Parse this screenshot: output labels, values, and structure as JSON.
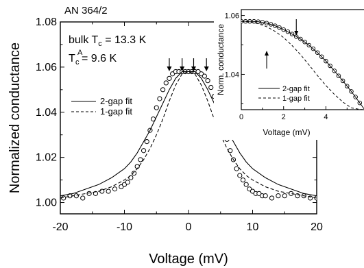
{
  "chart_data": [
    {
      "type": "scatter",
      "sample_label": "AN 364/2",
      "annotation_bulk": {
        "pre": "bulk T",
        "sub": "c",
        "post": " = 13.3 K"
      },
      "annotation_tca": {
        "pre": "T",
        "sub": "c",
        "sup": "A",
        "post": " = 9.6 K"
      },
      "xlabel": "Voltage (mV)",
      "ylabel": "Normalized conductance",
      "xlim": [
        -20,
        20
      ],
      "ylim": [
        0.995,
        1.08
      ],
      "xticks": [
        -20,
        -10,
        0,
        10,
        20
      ],
      "yticks": [
        1.0,
        1.02,
        1.04,
        1.06,
        1.08
      ],
      "ytick_labels": [
        "1.00",
        "1.02",
        "1.04",
        "1.06",
        "1.08"
      ],
      "legend": {
        "placement": "middle-left",
        "entries": [
          "2-gap fit",
          "1-gap fit"
        ]
      },
      "arrows_x": [
        -3.0,
        -1.0,
        0.8,
        2.8
      ],
      "series": [
        {
          "name": "data",
          "style": "open-circles",
          "x": [
            -19.5,
            -18.5,
            -17.5,
            -16.5,
            -15.5,
            -14.5,
            -13.5,
            -12.5,
            -11.5,
            -10.5,
            -10.0,
            -9.5,
            -9.0,
            -8.5,
            -8.0,
            -7.5,
            -7.0,
            -6.5,
            -6.0,
            -5.5,
            -5.0,
            -4.5,
            -4.0,
            -3.5,
            -3.0,
            -2.5,
            -2.0,
            -1.5,
            -1.0,
            -0.5,
            0.0,
            0.5,
            1.0,
            1.5,
            2.0,
            2.5,
            3.0,
            3.5,
            4.0,
            4.5,
            5.0,
            5.5,
            6.0,
            6.5,
            7.0,
            7.5,
            8.0,
            8.5,
            9.0,
            9.5,
            10.0,
            10.5,
            11.0,
            11.5,
            12.0,
            13.0,
            14.0,
            15.0,
            16.0,
            17.0,
            18.0,
            19.0,
            20.0
          ],
          "values": [
            1.002,
            1.003,
            1.003,
            1.002,
            1.004,
            1.004,
            1.005,
            1.005,
            1.006,
            1.007,
            1.008,
            1.009,
            1.011,
            1.013,
            1.016,
            1.019,
            1.023,
            1.027,
            1.032,
            1.037,
            1.042,
            1.046,
            1.05,
            1.053,
            1.055,
            1.057,
            1.058,
            1.058,
            1.058,
            1.058,
            1.058,
            1.058,
            1.058,
            1.058,
            1.057,
            1.056,
            1.054,
            1.051,
            1.047,
            1.043,
            1.038,
            1.033,
            1.028,
            1.023,
            1.019,
            1.015,
            1.012,
            1.01,
            1.008,
            1.006,
            1.005,
            1.004,
            1.004,
            1.003,
            1.003,
            1.002,
            1.003,
            1.003,
            1.004,
            1.003,
            1.003,
            1.002,
            1.002
          ]
        },
        {
          "name": "2-gap fit",
          "style": "solid",
          "x": [
            -20,
            -18,
            -16,
            -14,
            -12,
            -10,
            -9,
            -8,
            -7,
            -6,
            -5,
            -4,
            -3,
            -2,
            -1,
            0,
            1,
            2,
            3,
            4,
            5,
            6,
            7,
            8,
            9,
            10,
            12,
            14,
            16,
            18,
            20
          ],
          "values": [
            1.003,
            1.004,
            1.006,
            1.008,
            1.011,
            1.015,
            1.018,
            1.022,
            1.027,
            1.032,
            1.038,
            1.044,
            1.05,
            1.055,
            1.058,
            1.058,
            1.058,
            1.055,
            1.05,
            1.044,
            1.038,
            1.032,
            1.027,
            1.022,
            1.018,
            1.015,
            1.011,
            1.008,
            1.006,
            1.004,
            1.003
          ]
        },
        {
          "name": "1-gap fit",
          "style": "dashed",
          "x": [
            -20,
            -18,
            -16,
            -14,
            -12,
            -10,
            -9,
            -8,
            -7,
            -6,
            -5,
            -4,
            -3,
            -2,
            -1,
            0,
            1,
            2,
            3,
            4,
            5,
            6,
            7,
            8,
            9,
            10,
            12,
            14,
            16,
            18,
            20
          ],
          "values": [
            1.002,
            1.003,
            1.004,
            1.005,
            1.007,
            1.01,
            1.012,
            1.015,
            1.019,
            1.024,
            1.03,
            1.037,
            1.045,
            1.052,
            1.057,
            1.058,
            1.057,
            1.052,
            1.045,
            1.037,
            1.03,
            1.024,
            1.019,
            1.015,
            1.012,
            1.01,
            1.007,
            1.005,
            1.004,
            1.003,
            1.002
          ]
        }
      ]
    },
    {
      "type": "scatter",
      "xlabel": "Voltage (mV)",
      "ylabel": "Norm. conductance",
      "xlim": [
        0,
        5.8
      ],
      "ylim": [
        1.028,
        1.062
      ],
      "xticks": [
        0,
        2,
        4
      ],
      "yticks": [
        1.04,
        1.06
      ],
      "ytick_labels": [
        "1.04",
        "1.06"
      ],
      "legend": {
        "placement": "bottom-left",
        "entries": [
          "2-gap fit",
          "1-gap fit"
        ]
      },
      "arrows": [
        {
          "x": 1.2,
          "direction": "up"
        },
        {
          "x": 2.6,
          "direction": "down"
        }
      ],
      "series": [
        {
          "name": "data",
          "style": "open-circles",
          "x": [
            0.0,
            0.2,
            0.4,
            0.6,
            0.8,
            1.0,
            1.2,
            1.4,
            1.6,
            1.8,
            2.0,
            2.2,
            2.4,
            2.6,
            2.8,
            3.0,
            3.2,
            3.4,
            3.6,
            3.8,
            4.0,
            4.2,
            4.4,
            4.6,
            4.8,
            5.0,
            5.2,
            5.4,
            5.6
          ],
          "values": [
            1.058,
            1.058,
            1.058,
            1.058,
            1.0579,
            1.0577,
            1.0574,
            1.057,
            1.0565,
            1.0559,
            1.0552,
            1.0545,
            1.0537,
            1.0528,
            1.052,
            1.051,
            1.0499,
            1.0487,
            1.0474,
            1.046,
            1.0445,
            1.0429,
            1.0412,
            1.0395,
            1.0378,
            1.036,
            1.0342,
            1.0323,
            1.0303
          ]
        },
        {
          "name": "2-gap fit",
          "style": "solid",
          "x": [
            0.0,
            0.4,
            0.8,
            1.2,
            1.6,
            2.0,
            2.4,
            2.8,
            3.2,
            3.6,
            4.0,
            4.4,
            4.8,
            5.2,
            5.6,
            5.8
          ],
          "values": [
            1.058,
            1.058,
            1.0579,
            1.0574,
            1.0565,
            1.0552,
            1.0537,
            1.052,
            1.0499,
            1.0474,
            1.0445,
            1.0412,
            1.0378,
            1.0342,
            1.0303,
            1.0283
          ]
        },
        {
          "name": "1-gap fit",
          "style": "dashed",
          "x": [
            0.0,
            0.4,
            0.8,
            1.2,
            1.6,
            2.0,
            2.4,
            2.8,
            3.2,
            3.6,
            4.0,
            4.4,
            4.8,
            5.2,
            5.6,
            5.8
          ],
          "values": [
            1.058,
            1.0578,
            1.0572,
            1.0562,
            1.0546,
            1.0525,
            1.0498,
            1.0467,
            1.0432,
            1.0396,
            1.0362,
            1.0332,
            1.0306,
            1.0286,
            1.0281,
            1.028
          ]
        }
      ]
    }
  ]
}
